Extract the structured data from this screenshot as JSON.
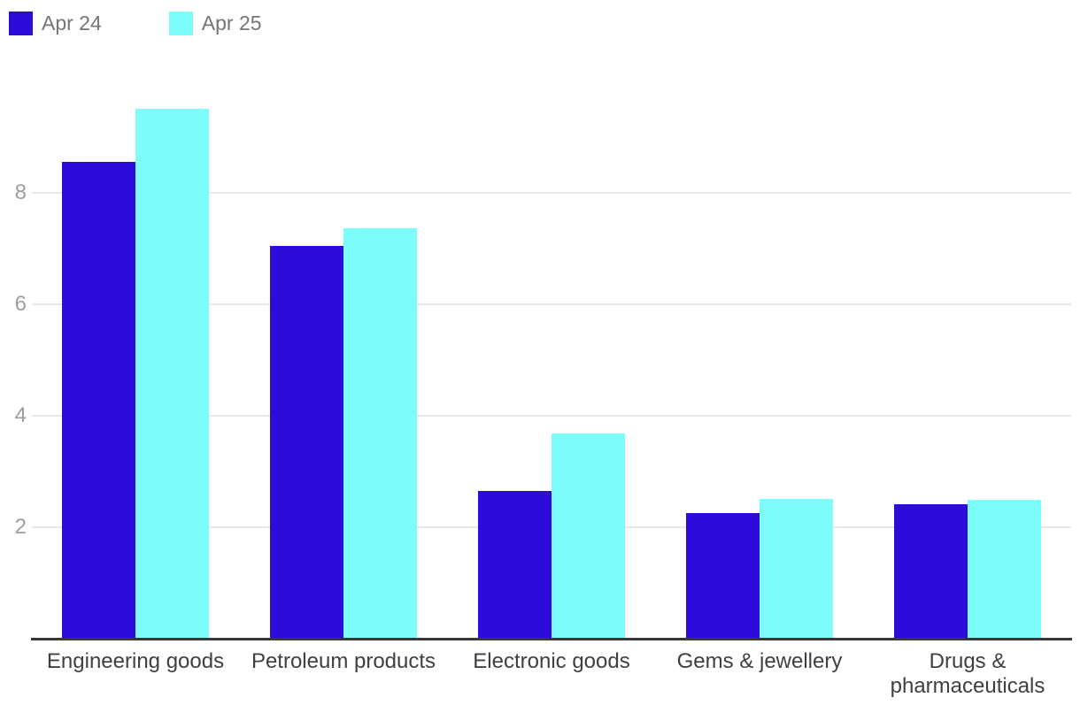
{
  "chart_data": {
    "type": "bar",
    "title": "",
    "xlabel": "",
    "ylabel": "",
    "categories": [
      "Engineering goods",
      "Petroleum products",
      "Electronic goods",
      "Gems & jewellery",
      "Drugs & pharmaceuticals"
    ],
    "series": [
      {
        "name": "Apr 24",
        "color": "#2c0bdb",
        "values": [
          8.55,
          7.05,
          2.65,
          2.25,
          2.41
        ]
      },
      {
        "name": "Apr 25",
        "color": "#7dfcfc",
        "values": [
          9.51,
          7.36,
          3.69,
          2.5,
          2.49
        ]
      }
    ],
    "yticks": [
      2,
      4,
      6,
      8
    ],
    "ylim": [
      0,
      10
    ],
    "grid": true,
    "legend_position": "top-left"
  },
  "colors": {
    "series_1": "#2c0bdb",
    "series_2": "#7dfcfc",
    "gridline": "#e8e8e8",
    "axis_line": "#383838",
    "tick_text": "#9e9e9e",
    "category_text": "#404040",
    "legend_text": "#757575",
    "background": "#ffffff"
  }
}
